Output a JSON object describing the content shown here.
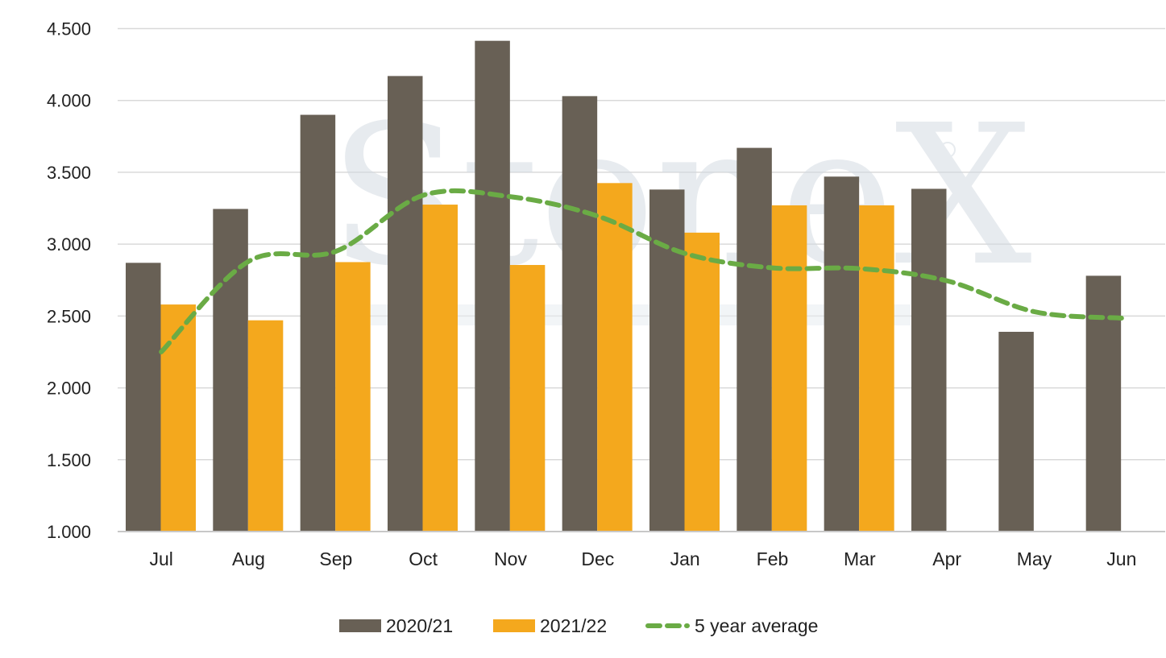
{
  "chart_data": {
    "type": "bar",
    "title": "",
    "xlabel": "",
    "ylabel": "",
    "categories": [
      "Jul",
      "Aug",
      "Sep",
      "Oct",
      "Nov",
      "Dec",
      "Jan",
      "Feb",
      "Mar",
      "Apr",
      "May",
      "Jun"
    ],
    "ylim": [
      1000,
      4500
    ],
    "yticks": [
      1000,
      1500,
      2000,
      2500,
      3000,
      3500,
      4000,
      4500
    ],
    "ytick_labels": [
      "1.000",
      "1.500",
      "2.000",
      "2.500",
      "3.000",
      "3.500",
      "4.000",
      "4.500"
    ],
    "grid": true,
    "legend_position": "bottom",
    "series": [
      {
        "name": "2020/21",
        "type": "bar",
        "color": "#686055",
        "values": [
          2870,
          3245,
          3900,
          4170,
          4415,
          4030,
          3380,
          3670,
          3470,
          3385,
          2390,
          2780
        ]
      },
      {
        "name": "2021/22",
        "type": "bar",
        "color": "#F4A81D",
        "values": [
          2580,
          2470,
          2875,
          3275,
          2855,
          3425,
          3080,
          3270,
          3270,
          null,
          null,
          null
        ]
      },
      {
        "name": "5 year average",
        "type": "line",
        "style": "dashed",
        "color": "#6AAB45",
        "values": [
          2250,
          2880,
          2950,
          3340,
          3330,
          3195,
          2935,
          2835,
          2830,
          2745,
          2530,
          2485
        ]
      }
    ],
    "watermark": "StoneX"
  }
}
